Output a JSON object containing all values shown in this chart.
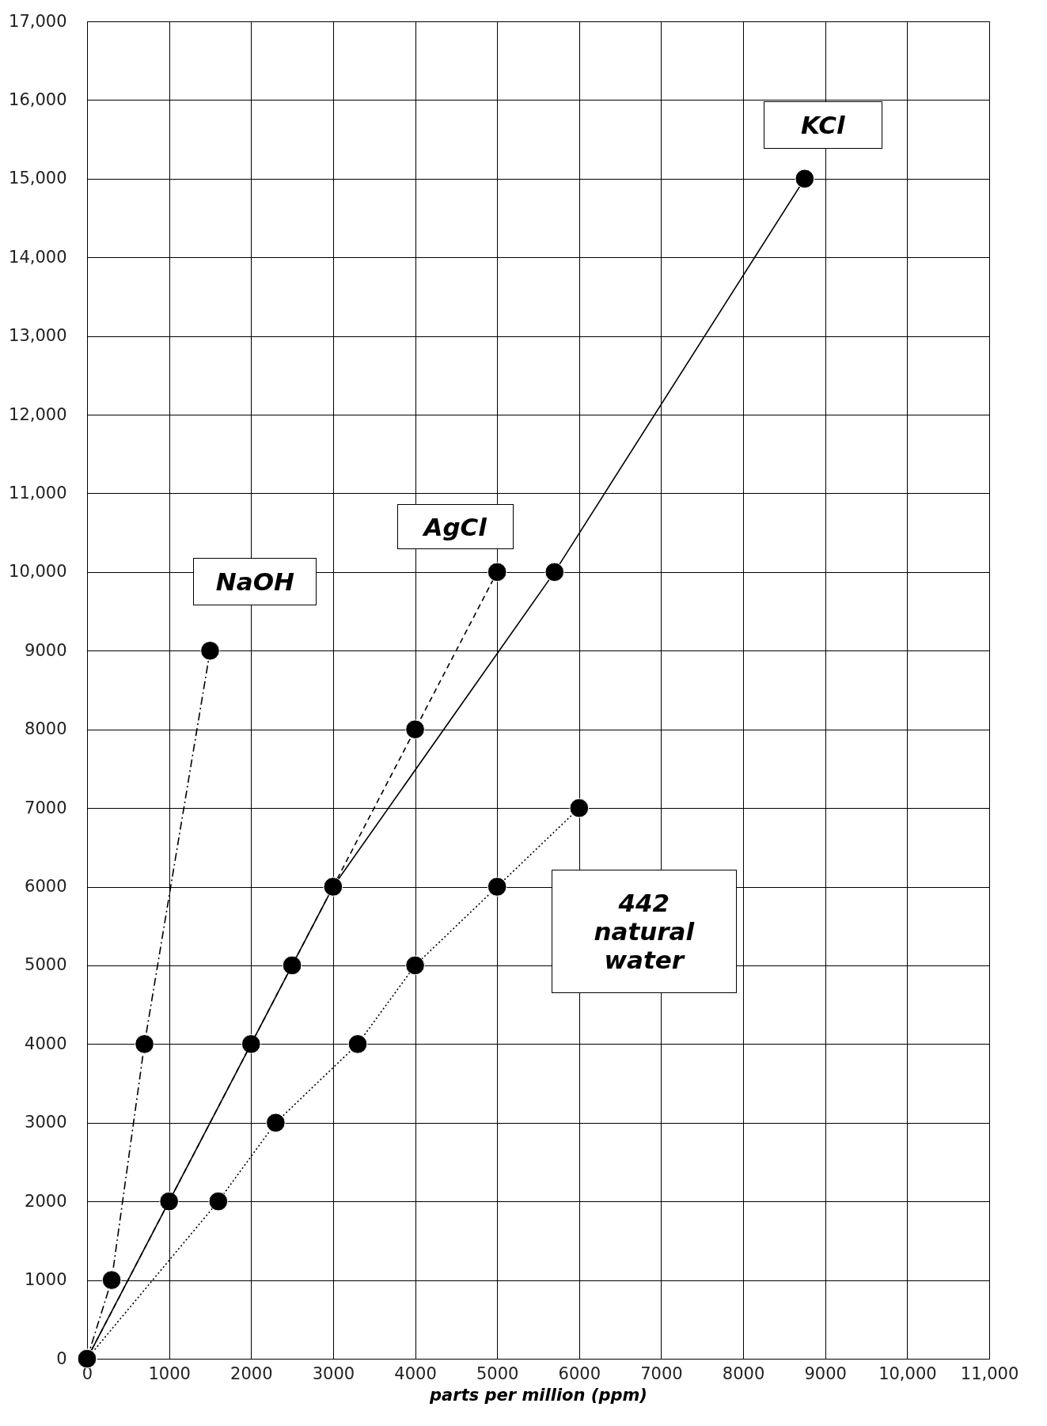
{
  "chart_data": {
    "type": "line",
    "xlabel": "parts per million (ppm)",
    "xlim": [
      0,
      11000
    ],
    "ylim": [
      0,
      17000
    ],
    "xticks": [
      0,
      1000,
      2000,
      3000,
      4000,
      5000,
      6000,
      7000,
      8000,
      9000,
      {
        "value": 10000,
        "label": "10,000"
      },
      {
        "value": 11000,
        "label": "11,000"
      }
    ],
    "yticks": [
      0,
      1000,
      2000,
      3000,
      4000,
      5000,
      6000,
      7000,
      8000,
      9000,
      {
        "value": 10000,
        "label": "10,000"
      },
      {
        "value": 11000,
        "label": "11,000"
      },
      {
        "value": 12000,
        "label": "12,000"
      },
      {
        "value": 13000,
        "label": "13,000"
      },
      {
        "value": 14000,
        "label": "14,000"
      },
      {
        "value": 15000,
        "label": "15,000"
      },
      {
        "value": 16000,
        "label": "16,000"
      },
      {
        "value": 17000,
        "label": "17,000"
      }
    ],
    "grid": true,
    "marker": "circle",
    "series": [
      {
        "name": "NaOH",
        "color": "#000000",
        "line_style": "dashdot",
        "x": [
          0,
          300,
          700,
          1500
        ],
        "values": [
          0,
          1000,
          4000,
          9000
        ]
      },
      {
        "name": "AgCl",
        "color": "#000000",
        "line_style": "dashed",
        "x": [
          0,
          1000,
          2000,
          2500,
          3000,
          4000,
          5000
        ],
        "values": [
          0,
          2000,
          4000,
          5000,
          6000,
          8000,
          10000
        ]
      },
      {
        "name": "KCl",
        "color": "#000000",
        "line_style": "solid",
        "x": [
          0,
          3000,
          5700,
          8750
        ],
        "values": [
          0,
          6000,
          10000,
          15000
        ]
      },
      {
        "name": "442 natural water",
        "color": "#000000",
        "line_style": "dotted",
        "x": [
          0,
          1600,
          2300,
          3300,
          4000,
          5000,
          6000
        ],
        "values": [
          0,
          2000,
          3000,
          4000,
          5000,
          6000,
          7000
        ]
      }
    ]
  }
}
